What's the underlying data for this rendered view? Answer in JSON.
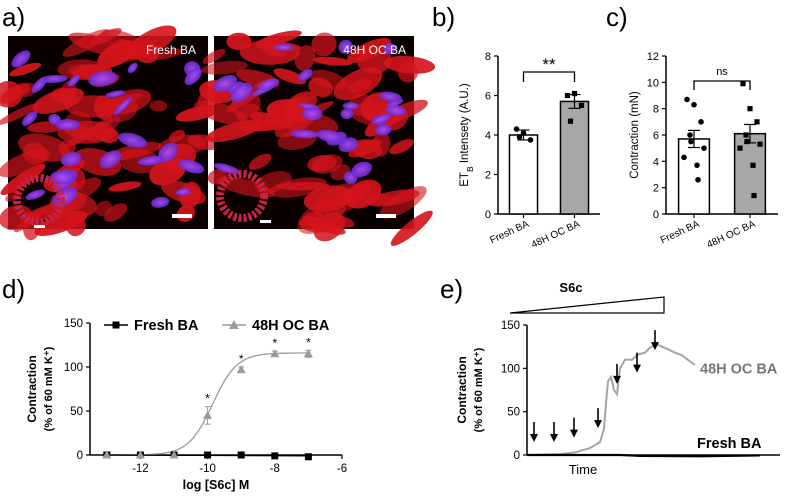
{
  "panel_labels": {
    "a": "a)",
    "b": "b)",
    "c": "c)",
    "d": "d)",
    "e": "e)"
  },
  "panel_a": {
    "images": [
      {
        "label": "Fresh BA",
        "description_colors": [
          "#d01818",
          "#7a3cff"
        ]
      },
      {
        "label": "48H OC BA",
        "description_colors": [
          "#d01818",
          "#7a3cff"
        ]
      }
    ]
  },
  "chart_data": [
    {
      "id": "b",
      "type": "bar",
      "categories": [
        "Fresh BA",
        "48H OC BA"
      ],
      "values": [
        4.0,
        5.7
      ],
      "errors": [
        0.25,
        0.35
      ],
      "points": [
        [
          4.3,
          4.1,
          3.75,
          3.9
        ],
        [
          6.0,
          6.1,
          5.5,
          4.7
        ]
      ],
      "bar_colors": [
        "#ffffff",
        "#a8a8a8"
      ],
      "ylabel_main": "ET",
      "ylabel_sub": "B",
      "ylabel_rest": " Intensety (A.U.)",
      "yticks": [
        0,
        2,
        4,
        6,
        8
      ],
      "ylim": [
        0,
        8
      ],
      "significance": "**"
    },
    {
      "id": "c",
      "type": "bar",
      "categories": [
        "Fresh BA",
        "48H OC BA"
      ],
      "values": [
        5.7,
        6.1
      ],
      "errors": [
        0.65,
        0.7
      ],
      "points": [
        [
          8.7,
          8.3,
          7.0,
          6.0,
          5.5,
          5.0,
          4.3,
          3.7,
          2.6
        ],
        [
          9.9,
          8.0,
          7.0,
          6.0,
          5.5,
          5.3,
          5.0,
          3.7,
          1.4
        ]
      ],
      "bar_colors": [
        "#ffffff",
        "#a8a8a8"
      ],
      "ylabel": "Contraction (mN)",
      "yticks": [
        0,
        2,
        4,
        6,
        8,
        10,
        12
      ],
      "ylim": [
        0,
        12
      ],
      "significance": "ns"
    },
    {
      "id": "d",
      "type": "line",
      "xlabel": "log [S6c] M",
      "ylabel_line1": "Contraction",
      "ylabel_line2": "(% of 60 mM K⁺)",
      "xticks": [
        -12,
        -10,
        -8,
        -6
      ],
      "yticks": [
        0,
        50,
        100,
        150
      ],
      "xlim": [
        -13.5,
        -6
      ],
      "ylim": [
        0,
        150
      ],
      "x": [
        -13,
        -12,
        -11,
        -10,
        -9,
        -8,
        -7
      ],
      "series": [
        {
          "name": "Fresh BA",
          "color": "#000000",
          "marker": "square",
          "values": [
            0,
            0,
            0,
            0,
            0,
            -1,
            -2
          ],
          "errors": [
            0,
            0,
            0,
            0,
            0,
            0,
            0
          ]
        },
        {
          "name": "48H OC BA",
          "color": "#9a9a9a",
          "marker": "triangle",
          "values": [
            0,
            0,
            0,
            45,
            97,
            115,
            115
          ],
          "errors": [
            0,
            0,
            0,
            10,
            3,
            3,
            4
          ]
        }
      ],
      "annotations": [
        "*",
        "*",
        "*",
        "*"
      ],
      "fit": {
        "bottom": 0,
        "top": 116,
        "log_ec50": -9.85,
        "hill": 1.2
      }
    },
    {
      "id": "e",
      "type": "line",
      "xlabel": "Time",
      "ylabel_line1": "Contraction",
      "ylabel_line2": "(% of 60 mM K⁺)",
      "yticks": [
        0,
        50,
        100,
        150
      ],
      "ylim": [
        0,
        150
      ],
      "ramp_label": "S6c",
      "series": [
        {
          "name": "48H OC BA",
          "color": "#a5a5a5"
        },
        {
          "name": "Fresh BA",
          "color": "#000000"
        }
      ]
    }
  ]
}
